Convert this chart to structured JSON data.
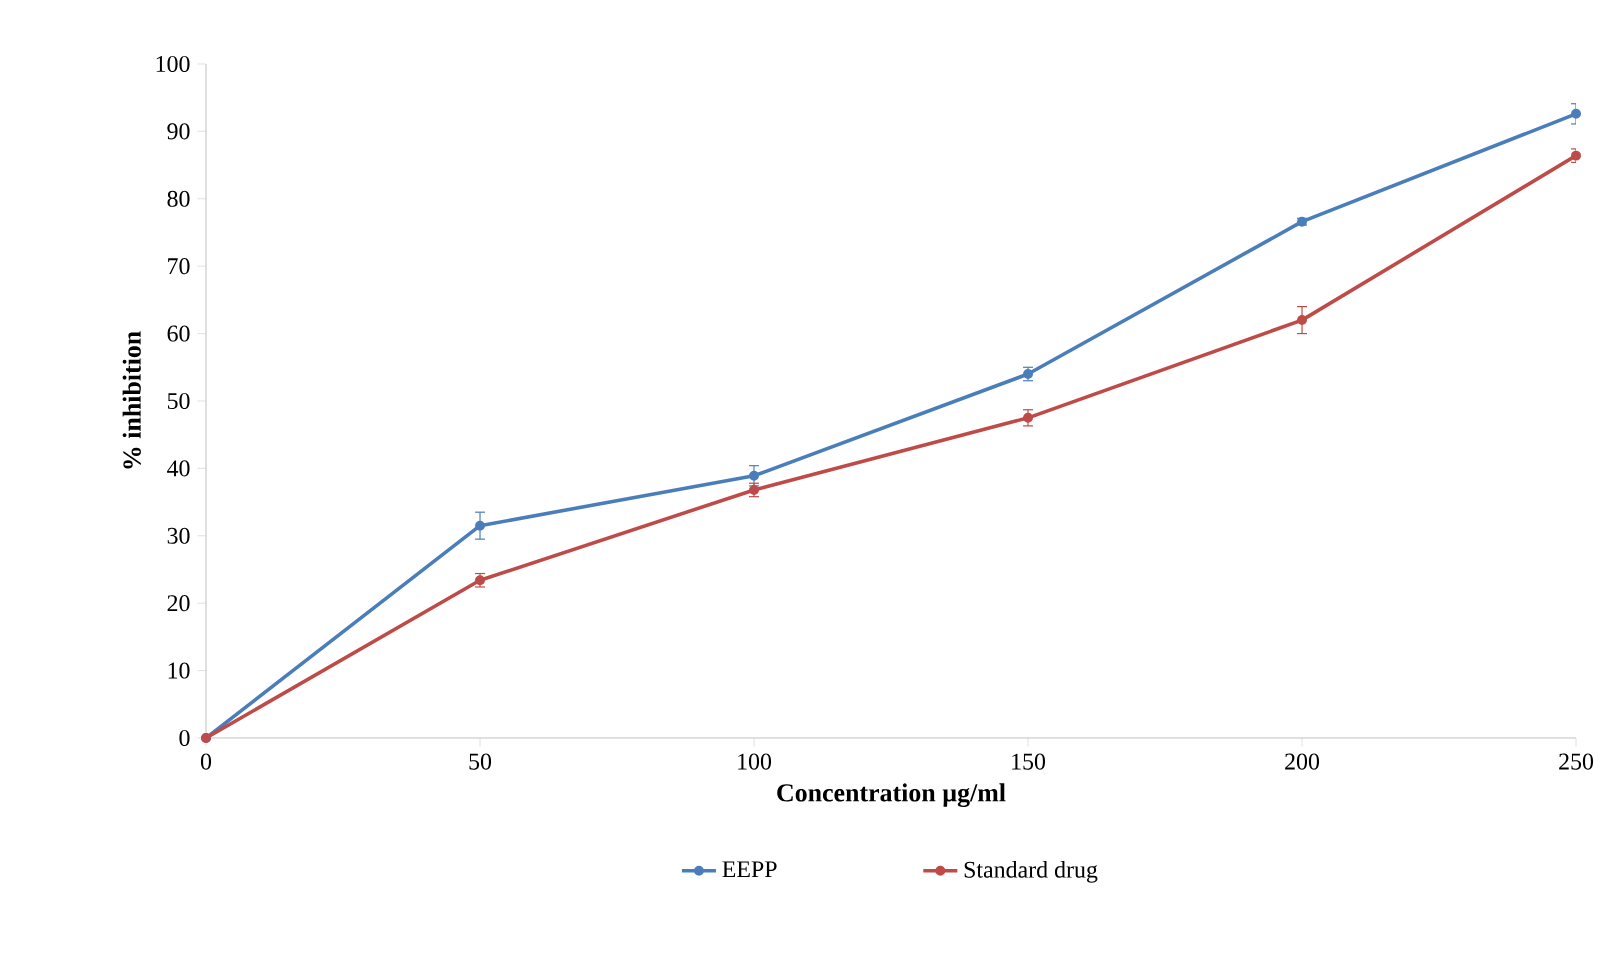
{
  "chart_data": {
    "type": "line",
    "xlabel": "Concentration µg/ml",
    "ylabel": "% inhibition",
    "x": [
      0,
      50,
      100,
      150,
      200,
      250
    ],
    "series": [
      {
        "name": "EEPP",
        "color": "#4a7ebb",
        "values": [
          0,
          31.5,
          38.9,
          54,
          76.6,
          92.6
        ],
        "errors": [
          0,
          2,
          1.5,
          1,
          0.5,
          1.5
        ]
      },
      {
        "name": "Standard drug",
        "color": "#be4b48",
        "values": [
          0,
          23.4,
          36.8,
          47.5,
          62,
          86.4
        ],
        "errors": [
          0,
          1,
          1,
          1.2,
          2,
          1
        ]
      }
    ],
    "xlim": [
      0,
      250
    ],
    "xticks": [
      0,
      50,
      100,
      150,
      200,
      250
    ],
    "ylim": [
      0,
      100
    ],
    "yticks": [
      0,
      10,
      20,
      30,
      40,
      50,
      60,
      70,
      80,
      90,
      100
    ],
    "grid": false,
    "legend": "bottom",
    "marker": "circle",
    "line_style": "solid"
  }
}
